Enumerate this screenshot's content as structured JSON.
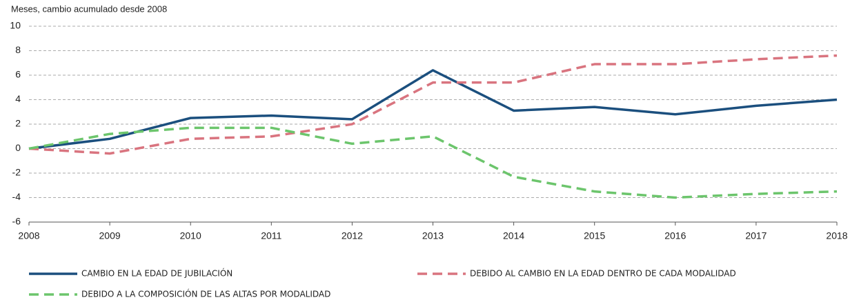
{
  "chart_data": {
    "type": "line",
    "y_axis_label": "Meses, cambio acumulado desde 2008",
    "x": [
      2008,
      2009,
      2010,
      2011,
      2012,
      2013,
      2014,
      2015,
      2016,
      2017,
      2018
    ],
    "xlim": [
      2008,
      2018
    ],
    "xticks": [
      2008,
      2009,
      2010,
      2011,
      2012,
      2013,
      2014,
      2015,
      2016,
      2017,
      2018
    ],
    "ylim": [
      -6,
      10
    ],
    "yticks": [
      -6,
      -4,
      -2,
      0,
      2,
      4,
      6,
      8,
      10
    ],
    "grid": true,
    "series": [
      {
        "name": "CAMBIO EN LA EDAD DE JUBILACIÓN",
        "color": "#1b4f7e",
        "style": "solid",
        "values": [
          0,
          0.8,
          2.5,
          2.7,
          2.4,
          6.4,
          3.1,
          3.4,
          2.8,
          3.5,
          4.0
        ]
      },
      {
        "name": "DEBIDO AL CAMBIO EN LA EDAD DENTRO DE CADA MODALIDAD",
        "color": "#d9747f",
        "style": "dashed",
        "values": [
          0,
          -0.4,
          0.8,
          1.0,
          2.0,
          5.4,
          5.4,
          6.9,
          6.9,
          7.3,
          7.6
        ]
      },
      {
        "name": "DEBIDO A LA COMPOSICIÓN DE LAS ALTAS POR MODALIDAD",
        "color": "#6cc56c",
        "style": "dashed",
        "values": [
          0,
          1.2,
          1.7,
          1.7,
          0.4,
          1.0,
          -2.3,
          -3.5,
          -4.0,
          -3.7,
          -3.5
        ]
      }
    ]
  }
}
